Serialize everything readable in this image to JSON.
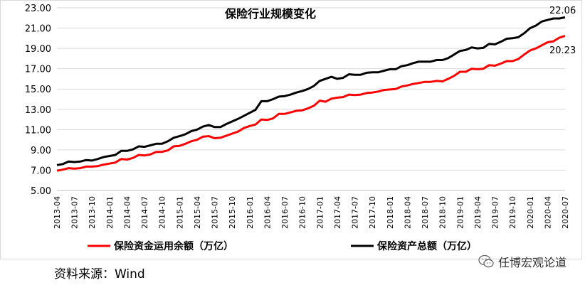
{
  "chart_data": {
    "type": "line",
    "title": "保险行业规模变化",
    "ylim": [
      5.0,
      23.0
    ],
    "yticks": [
      "5.00",
      "7.00",
      "9.00",
      "11.00",
      "13.00",
      "15.00",
      "17.00",
      "19.00",
      "21.00",
      "23.00"
    ],
    "xticks": [
      "2013-04",
      "2013-07",
      "2013-10",
      "2014-01",
      "2014-04",
      "2014-07",
      "2014-10",
      "2015-01",
      "2015-04",
      "2015-07",
      "2015-10",
      "2016-01",
      "2016-04",
      "2016-07",
      "2016-10",
      "2017-01",
      "2017-04",
      "2017-07",
      "2017-10",
      "2018-01",
      "2018-04",
      "2018-07",
      "2018-10",
      "2019-01",
      "2019-04",
      "2019-07",
      "2019-10",
      "2020-01",
      "2020-04",
      "2020-07"
    ],
    "grid": true,
    "legend_position": "bottom",
    "series": [
      {
        "name": "保险资金运用余额（万亿）",
        "color": "#ff0000",
        "values": [
          6.95,
          7.05,
          7.2,
          7.15,
          7.2,
          7.35,
          7.35,
          7.4,
          7.55,
          7.65,
          7.75,
          8.1,
          8.05,
          8.2,
          8.5,
          8.45,
          8.55,
          8.8,
          8.8,
          8.95,
          9.35,
          9.4,
          9.6,
          9.85,
          10.0,
          10.3,
          10.35,
          10.15,
          10.2,
          10.4,
          10.6,
          10.8,
          11.15,
          11.35,
          11.5,
          12.0,
          11.95,
          12.1,
          12.55,
          12.55,
          12.7,
          12.85,
          12.9,
          13.1,
          13.35,
          13.85,
          13.75,
          14.05,
          14.15,
          14.2,
          14.45,
          14.4,
          14.45,
          14.6,
          14.65,
          14.75,
          14.9,
          14.95,
          15.0,
          15.25,
          15.35,
          15.5,
          15.6,
          15.7,
          15.7,
          15.8,
          15.75,
          16.0,
          16.3,
          16.7,
          16.7,
          17.0,
          16.95,
          17.0,
          17.35,
          17.3,
          17.5,
          17.75,
          17.75,
          17.95,
          18.4,
          18.8,
          19.0,
          19.3,
          19.6,
          19.7,
          20.05,
          20.23
        ]
      },
      {
        "name": "保险资产总额（万亿）",
        "color": "#000000",
        "values": [
          7.5,
          7.6,
          7.85,
          7.8,
          7.85,
          8.0,
          7.95,
          8.1,
          8.3,
          8.4,
          8.5,
          8.9,
          8.9,
          9.05,
          9.35,
          9.3,
          9.45,
          9.6,
          9.6,
          9.85,
          10.2,
          10.35,
          10.55,
          10.85,
          11.0,
          11.3,
          11.45,
          11.25,
          11.25,
          11.55,
          11.8,
          12.05,
          12.35,
          12.65,
          12.95,
          13.8,
          13.8,
          14.0,
          14.25,
          14.3,
          14.45,
          14.65,
          14.8,
          15.0,
          15.3,
          15.8,
          16.0,
          16.2,
          16.0,
          16.1,
          16.45,
          16.4,
          16.4,
          16.6,
          16.65,
          16.65,
          16.8,
          16.95,
          16.95,
          17.25,
          17.35,
          17.55,
          17.7,
          17.7,
          17.7,
          17.85,
          17.85,
          18.05,
          18.4,
          18.75,
          18.85,
          19.1,
          19.0,
          19.05,
          19.45,
          19.4,
          19.65,
          19.95,
          20.0,
          20.1,
          20.5,
          21.0,
          21.25,
          21.65,
          21.8,
          21.95,
          21.95,
          22.06
        ]
      }
    ],
    "end_labels": [
      "22.06",
      "20.23"
    ]
  },
  "source_text": "资料来源：Wind",
  "brand_text": "任博宏观论道",
  "brand_icon": "wechat-icon"
}
